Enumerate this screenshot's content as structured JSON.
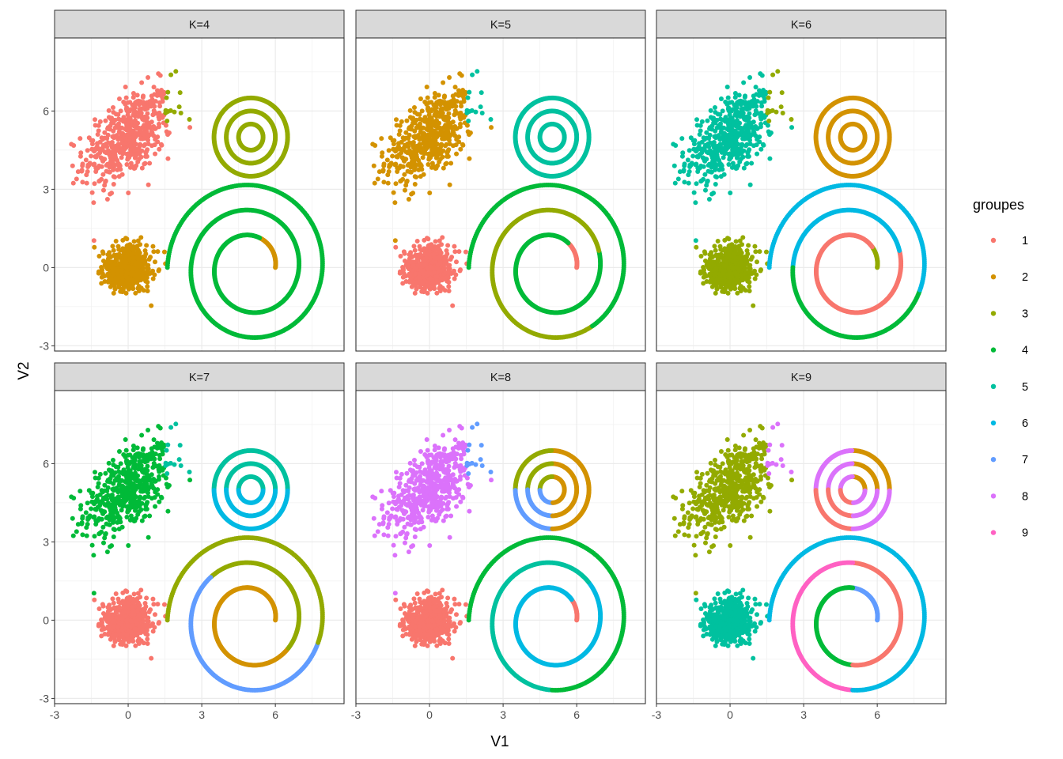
{
  "chart_data": {
    "type": "scatter",
    "facet_by": "K",
    "facets": [
      {
        "label": "K=4",
        "k": 4,
        "assign": {
          "blob_top": 1,
          "blob_top_tail": 3,
          "blob_origin": 2,
          "rings": 3,
          "spiral": [
            [
              0,
              0.08,
              2
            ],
            [
              0.08,
              1,
              4
            ]
          ]
        }
      },
      {
        "label": "K=5",
        "k": 5,
        "assign": {
          "blob_top": 2,
          "blob_top_tail": 5,
          "blob_origin": 1,
          "rings": 5,
          "spiral": [
            [
              0,
              0.06,
              1
            ],
            [
              0.06,
              0.42,
              4
            ],
            [
              0.42,
              0.74,
              3
            ],
            [
              0.74,
              1,
              4
            ]
          ]
        }
      },
      {
        "label": "K=6",
        "k": 6,
        "assign": {
          "blob_top": 5,
          "blob_top_tail": 3,
          "blob_origin": 3,
          "rings": 2,
          "spiral": [
            [
              0,
              0.05,
              3
            ],
            [
              0.05,
              0.42,
              1
            ],
            [
              0.42,
              0.6,
              6
            ],
            [
              0.6,
              0.78,
              4
            ],
            [
              0.78,
              1,
              6
            ]
          ]
        }
      },
      {
        "label": "K=7",
        "k": 7,
        "assign": {
          "blob_top": 4,
          "blob_top_tail": 5,
          "blob_origin": 1,
          "rings": [
            [
              0,
              0.5,
              5
            ],
            [
              0.5,
              1,
              6
            ]
          ],
          "spiral": [
            [
              0,
              0.12,
              2
            ],
            [
              0.12,
              0.36,
              2
            ],
            [
              0.36,
              0.55,
              3
            ],
            [
              0.55,
              0.78,
              7
            ],
            [
              0.78,
              1,
              3
            ]
          ]
        }
      },
      {
        "label": "K=8",
        "k": 8,
        "assign": {
          "blob_top": 8,
          "blob_top_tail": 7,
          "blob_origin": 1,
          "rings": [
            [
              0,
              0.25,
              2
            ],
            [
              0.25,
              0.5,
              3
            ],
            [
              0.5,
              0.75,
              7
            ],
            [
              0.75,
              1,
              2
            ]
          ],
          "spiral": [
            [
              0,
              0.05,
              1
            ],
            [
              0.05,
              0.45,
              6
            ],
            [
              0.45,
              0.7,
              5
            ],
            [
              0.7,
              1,
              4
            ]
          ]
        }
      },
      {
        "label": "K=9",
        "k": 9,
        "assign": {
          "blob_top": 3,
          "blob_top_tail": 8,
          "blob_origin": 5,
          "rings": [
            [
              0,
              0.25,
              2
            ],
            [
              0.25,
              0.5,
              8
            ],
            [
              0.5,
              0.75,
              1
            ],
            [
              0.75,
              1,
              8
            ]
          ],
          "spiral": [
            [
              0,
              0.1,
              7
            ],
            [
              0.1,
              0.3,
              4
            ],
            [
              0.3,
              0.5,
              1
            ],
            [
              0.5,
              0.7,
              9
            ],
            [
              0.7,
              1,
              6
            ]
          ]
        }
      }
    ],
    "clusters": {
      "blob_top": {
        "shape": "gaussian",
        "center": [
          0,
          5
        ],
        "sd": [
          0.9,
          0.9
        ],
        "corr": 0.5,
        "n": 520
      },
      "blob_origin": {
        "shape": "gaussian",
        "center": [
          0,
          0
        ],
        "sd": [
          0.5,
          0.45
        ],
        "corr": 0,
        "n": 500
      },
      "rings": {
        "shape": "concentric_rings",
        "center": [
          5,
          5
        ],
        "radii": [
          0.5,
          1,
          1.5
        ]
      },
      "spiral": {
        "shape": "spiral",
        "center": [
          5,
          0
        ],
        "r_start": 1,
        "r_end": 3.4,
        "turns": 2.5
      }
    },
    "xlabel": "V1",
    "ylabel": "V2",
    "xlim": [
      -3,
      8.8
    ],
    "ylim": [
      -3.2,
      8.8
    ],
    "x_ticks": [
      "-3",
      "0",
      "3",
      "6"
    ],
    "x_tick_values": [
      -3,
      0,
      3,
      6
    ],
    "y_ticks": [
      "-3",
      "0",
      "3",
      "6"
    ],
    "y_tick_values": [
      -3,
      0,
      3,
      6
    ],
    "grid": true,
    "legend": {
      "title": "groupes",
      "position": "right",
      "labels": [
        "1",
        "2",
        "3",
        "4",
        "5",
        "6",
        "7",
        "8",
        "9"
      ],
      "colors": [
        "#F8766D",
        "#D39200",
        "#93AA00",
        "#00BA38",
        "#00C19F",
        "#00B9E3",
        "#619CFF",
        "#DB72FB",
        "#FF61C3"
      ]
    }
  }
}
